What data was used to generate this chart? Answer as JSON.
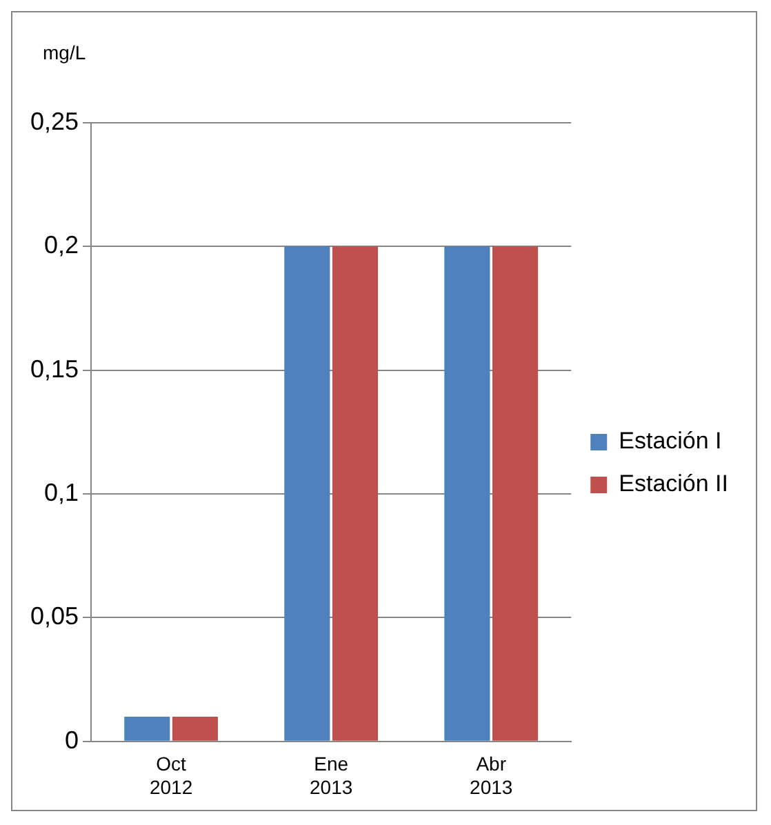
{
  "chart_data": {
    "type": "bar",
    "ylabel": "mg/L",
    "categories": [
      "Oct 2012",
      "Ene 2013",
      "Abr 2013"
    ],
    "series": [
      {
        "name": "Estación I",
        "color": "#4f81bd",
        "values": [
          0.01,
          0.2,
          0.2
        ]
      },
      {
        "name": "Estación II",
        "color": "#c0504d",
        "values": [
          0.01,
          0.2,
          0.2
        ]
      }
    ],
    "ylim": [
      0,
      0.25
    ],
    "yticks": [
      {
        "value": 0,
        "label": "0"
      },
      {
        "value": 0.05,
        "label": "0,05"
      },
      {
        "value": 0.1,
        "label": "0,1"
      },
      {
        "value": 0.15,
        "label": "0,15"
      },
      {
        "value": 0.2,
        "label": "0,2"
      },
      {
        "value": 0.25,
        "label": "0,25"
      }
    ],
    "grid": "y",
    "legend": "right"
  }
}
